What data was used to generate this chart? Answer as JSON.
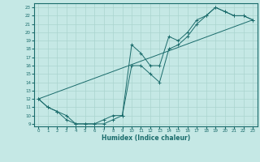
{
  "title": "",
  "xlabel": "Humidex (Indice chaleur)",
  "bg_color": "#c5e8e5",
  "line_color": "#1a6b6b",
  "grid_color": "#aad4cf",
  "xlim": [
    -0.5,
    23.5
  ],
  "ylim": [
    8.7,
    23.5
  ],
  "xticks": [
    0,
    1,
    2,
    3,
    4,
    5,
    6,
    7,
    8,
    9,
    10,
    11,
    12,
    13,
    14,
    15,
    16,
    17,
    18,
    19,
    20,
    21,
    22,
    23
  ],
  "yticks": [
    9,
    10,
    11,
    12,
    13,
    14,
    15,
    16,
    17,
    18,
    19,
    20,
    21,
    22,
    23
  ],
  "line1_x": [
    0,
    1,
    2,
    3,
    4,
    5,
    6,
    7,
    8,
    9,
    10,
    11,
    12,
    13,
    14,
    15,
    16,
    17,
    18,
    19,
    20,
    21,
    22,
    23
  ],
  "line1_y": [
    12,
    11,
    10.5,
    10,
    9,
    9,
    9,
    9.5,
    10,
    10,
    18.5,
    17.5,
    16,
    16,
    19.5,
    19,
    20,
    21.5,
    22,
    23,
    22.5,
    22,
    22,
    21.5
  ],
  "line2_x": [
    0,
    1,
    2,
    3,
    4,
    5,
    6,
    7,
    8,
    9,
    10,
    11,
    12,
    13,
    14,
    15,
    16,
    17,
    18,
    19,
    20,
    21,
    22,
    23
  ],
  "line2_y": [
    12,
    11,
    10.5,
    9.5,
    9,
    9,
    9,
    9,
    9.5,
    10,
    16,
    16,
    15,
    14,
    18,
    18.5,
    19.5,
    21,
    22,
    23,
    22.5,
    22,
    22,
    21.5
  ],
  "line3_x": [
    0,
    23
  ],
  "line3_y": [
    12,
    21.5
  ],
  "marker": "+"
}
